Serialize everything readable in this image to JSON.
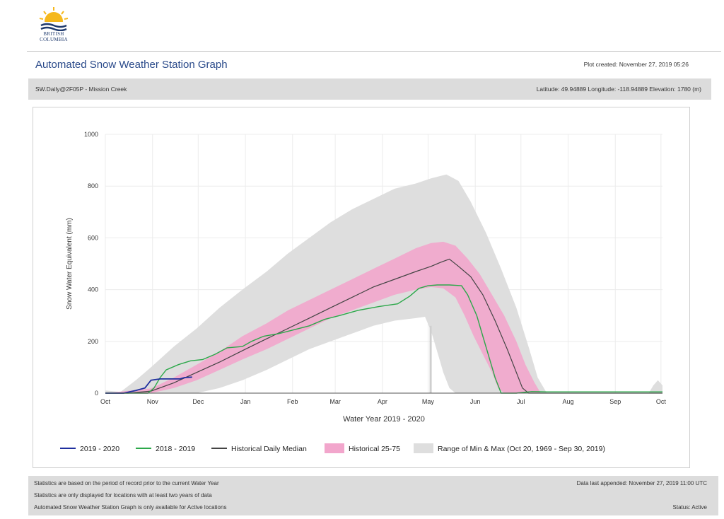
{
  "logo": {
    "name": "bc-logo-icon",
    "line1": "BRITISH",
    "line2": "COLUMBIA"
  },
  "header": {
    "title": "Automated Snow Weather Station Graph",
    "plot_created": "Plot created: November 27, 2019 05:26"
  },
  "station": {
    "name": "SW.Daily@2F05P - Mission Creek",
    "coords": "Latitude: 49.94889 Longitude: -118.94889 Elevation: 1780 (m)"
  },
  "footer": {
    "note1": "Statistics are based on the period of record prior to the current Water Year",
    "note2": "Statistics are only displayed for locations with at least two years of data",
    "note3": "Automated Snow Weather Station Graph is only available for Active locations",
    "appended": "Data last appended: November 27, 2019 11:00 UTC",
    "status": "Status: Active"
  },
  "colors": {
    "current": "#1f2f9e",
    "prev": "#2ca84a",
    "median": "#444444",
    "band": "#f2a6cc",
    "range": "#dedede",
    "grid": "#ececec",
    "axis": "#555555"
  },
  "chart_data": {
    "type": "line",
    "title": "",
    "xlabel": "Water Year 2019 - 2020",
    "ylabel": "Snow Water Equivalent (mm)",
    "x_months": [
      "Oct",
      "Nov",
      "Dec",
      "Jan",
      "Feb",
      "Mar",
      "Apr",
      "May",
      "Jun",
      "Jul",
      "Aug",
      "Sep",
      "Oct"
    ],
    "x_unit": "days since Oct 1",
    "ylim": [
      0,
      1000
    ],
    "yticks": [
      0,
      200,
      400,
      600,
      800,
      1000
    ],
    "grid": true,
    "legend_position": "bottom",
    "legend": {
      "current": "2019 - 2020",
      "prev": "2018 - 2019",
      "median": "Historical Daily Median",
      "band": "Historical 25-75",
      "range": "Range of Min & Max (Oct 20, 1969 - Sep 30, 2019)"
    },
    "series": [
      {
        "key": "current",
        "name": "2019 - 2020",
        "points": [
          [
            0,
            0
          ],
          [
            12,
            0
          ],
          [
            20,
            10
          ],
          [
            26,
            20
          ],
          [
            30,
            50
          ],
          [
            36,
            55
          ],
          [
            42,
            55
          ],
          [
            49,
            55
          ],
          [
            52,
            60
          ],
          [
            57,
            62
          ]
        ]
      },
      {
        "key": "prev",
        "name": "2018 - 2019",
        "points": [
          [
            0,
            0
          ],
          [
            28,
            0
          ],
          [
            32,
            20
          ],
          [
            36,
            60
          ],
          [
            40,
            90
          ],
          [
            48,
            110
          ],
          [
            56,
            125
          ],
          [
            64,
            130
          ],
          [
            72,
            150
          ],
          [
            80,
            175
          ],
          [
            90,
            180
          ],
          [
            96,
            200
          ],
          [
            104,
            220
          ],
          [
            114,
            230
          ],
          [
            124,
            245
          ],
          [
            134,
            260
          ],
          [
            144,
            285
          ],
          [
            154,
            300
          ],
          [
            166,
            320
          ],
          [
            180,
            335
          ],
          [
            192,
            345
          ],
          [
            200,
            375
          ],
          [
            206,
            405
          ],
          [
            212,
            415
          ],
          [
            218,
            418
          ],
          [
            226,
            418
          ],
          [
            234,
            415
          ],
          [
            238,
            380
          ],
          [
            244,
            300
          ],
          [
            248,
            220
          ],
          [
            252,
            140
          ],
          [
            256,
            60
          ],
          [
            260,
            0
          ],
          [
            270,
            0
          ],
          [
            280,
            6
          ],
          [
            290,
            5
          ],
          [
            300,
            5
          ],
          [
            310,
            5
          ],
          [
            366,
            5
          ]
        ]
      },
      {
        "key": "median",
        "name": "Historical Daily Median",
        "points": [
          [
            0,
            0
          ],
          [
            15,
            0
          ],
          [
            30,
            8
          ],
          [
            45,
            40
          ],
          [
            60,
            80
          ],
          [
            75,
            120
          ],
          [
            92,
            170
          ],
          [
            106,
            210
          ],
          [
            120,
            250
          ],
          [
            134,
            290
          ],
          [
            148,
            330
          ],
          [
            162,
            370
          ],
          [
            176,
            410
          ],
          [
            190,
            440
          ],
          [
            204,
            470
          ],
          [
            214,
            490
          ],
          [
            220,
            505
          ],
          [
            226,
            518
          ],
          [
            232,
            490
          ],
          [
            240,
            450
          ],
          [
            248,
            380
          ],
          [
            256,
            280
          ],
          [
            264,
            170
          ],
          [
            270,
            80
          ],
          [
            274,
            20
          ],
          [
            278,
            0
          ],
          [
            366,
            0
          ]
        ]
      },
      {
        "key": "band_upper",
        "points": [
          [
            0,
            0
          ],
          [
            30,
            18
          ],
          [
            45,
            60
          ],
          [
            60,
            110
          ],
          [
            75,
            160
          ],
          [
            90,
            220
          ],
          [
            106,
            270
          ],
          [
            120,
            320
          ],
          [
            134,
            360
          ],
          [
            148,
            400
          ],
          [
            162,
            440
          ],
          [
            176,
            480
          ],
          [
            190,
            520
          ],
          [
            204,
            560
          ],
          [
            214,
            580
          ],
          [
            222,
            585
          ],
          [
            230,
            570
          ],
          [
            238,
            520
          ],
          [
            246,
            460
          ],
          [
            254,
            380
          ],
          [
            262,
            300
          ],
          [
            270,
            200
          ],
          [
            276,
            110
          ],
          [
            282,
            40
          ],
          [
            286,
            0
          ],
          [
            366,
            0
          ]
        ]
      },
      {
        "key": "band_lower",
        "points": [
          [
            0,
            0
          ],
          [
            30,
            0
          ],
          [
            45,
            20
          ],
          [
            60,
            50
          ],
          [
            75,
            90
          ],
          [
            90,
            130
          ],
          [
            106,
            170
          ],
          [
            120,
            210
          ],
          [
            134,
            250
          ],
          [
            148,
            290
          ],
          [
            162,
            320
          ],
          [
            176,
            350
          ],
          [
            190,
            380
          ],
          [
            204,
            400
          ],
          [
            214,
            410
          ],
          [
            222,
            405
          ],
          [
            230,
            370
          ],
          [
            236,
            300
          ],
          [
            242,
            220
          ],
          [
            248,
            150
          ],
          [
            254,
            80
          ],
          [
            258,
            20
          ],
          [
            262,
            0
          ],
          [
            366,
            0
          ]
        ]
      },
      {
        "key": "range_upper",
        "points": [
          [
            0,
            10
          ],
          [
            10,
            5
          ],
          [
            20,
            50
          ],
          [
            30,
            100
          ],
          [
            45,
            180
          ],
          [
            60,
            250
          ],
          [
            75,
            330
          ],
          [
            90,
            400
          ],
          [
            106,
            470
          ],
          [
            120,
            540
          ],
          [
            134,
            600
          ],
          [
            148,
            660
          ],
          [
            162,
            710
          ],
          [
            176,
            750
          ],
          [
            190,
            790
          ],
          [
            204,
            810
          ],
          [
            214,
            830
          ],
          [
            224,
            845
          ],
          [
            232,
            820
          ],
          [
            240,
            740
          ],
          [
            250,
            620
          ],
          [
            260,
            480
          ],
          [
            270,
            330
          ],
          [
            278,
            180
          ],
          [
            284,
            60
          ],
          [
            290,
            0
          ],
          [
            357,
            0
          ],
          [
            360,
            30
          ],
          [
            363,
            50
          ],
          [
            366,
            30
          ]
        ]
      },
      {
        "key": "range_lower",
        "points": [
          [
            0,
            0
          ],
          [
            60,
            0
          ],
          [
            75,
            20
          ],
          [
            90,
            50
          ],
          [
            106,
            90
          ],
          [
            120,
            130
          ],
          [
            134,
            170
          ],
          [
            148,
            200
          ],
          [
            162,
            230
          ],
          [
            176,
            260
          ],
          [
            190,
            280
          ],
          [
            204,
            290
          ],
          [
            210,
            295
          ],
          [
            214,
            240
          ],
          [
            218,
            160
          ],
          [
            222,
            80
          ],
          [
            226,
            20
          ],
          [
            230,
            0
          ],
          [
            366,
            0
          ]
        ]
      }
    ]
  }
}
